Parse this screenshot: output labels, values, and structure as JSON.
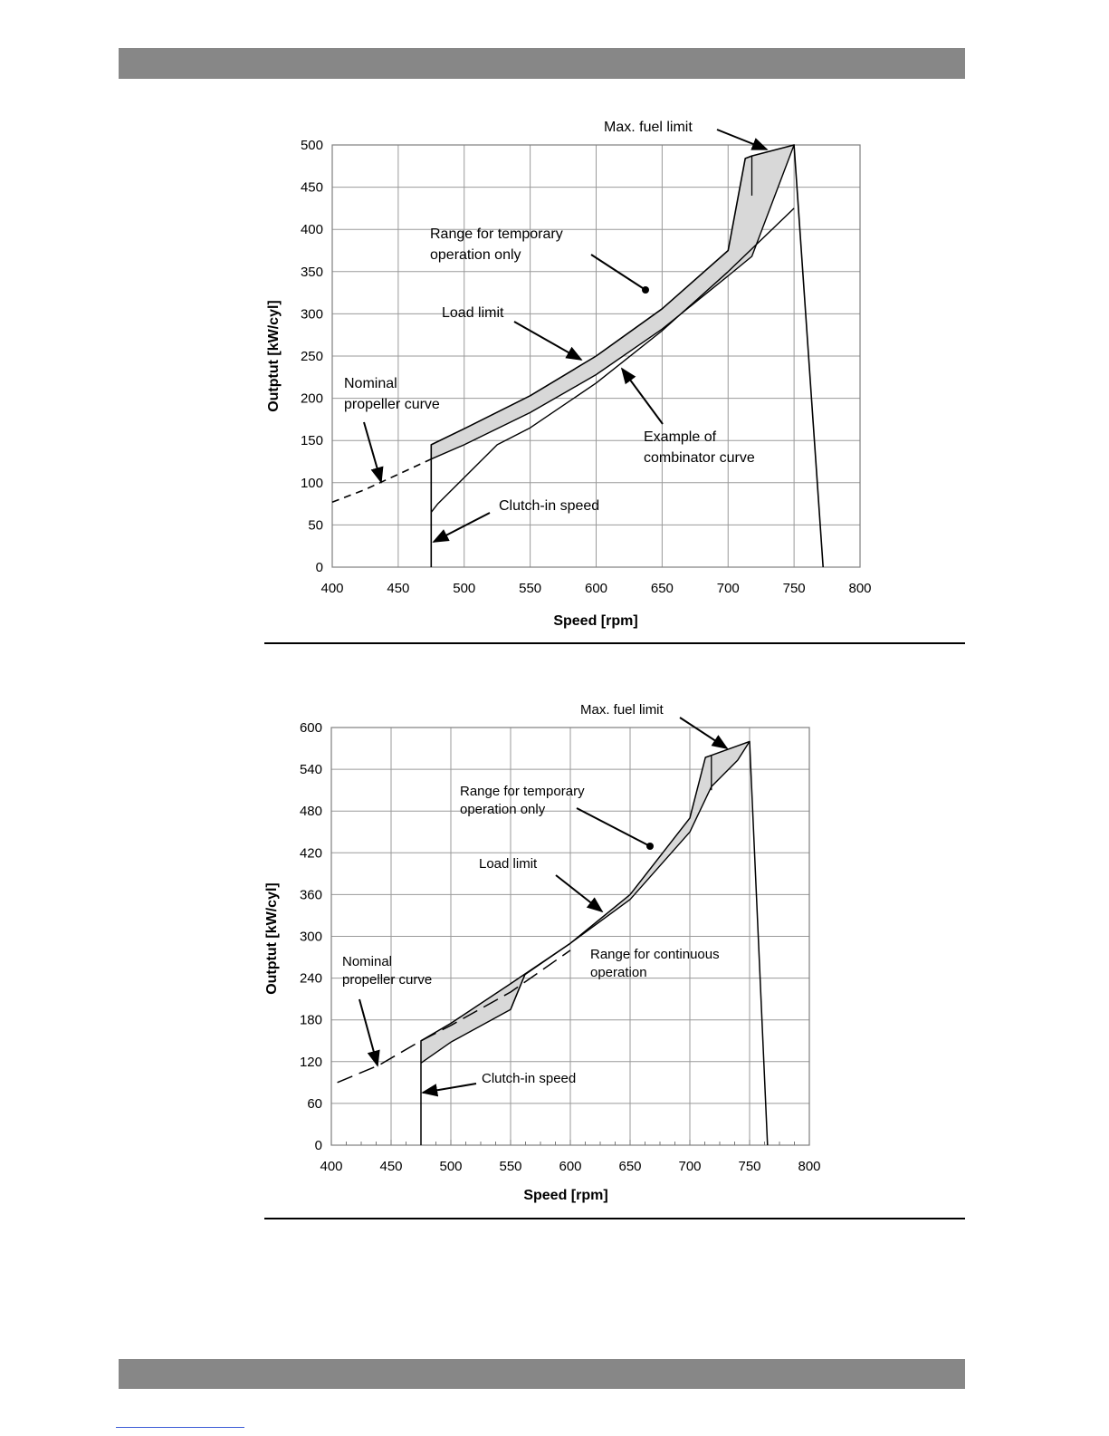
{
  "chart_data": [
    {
      "type": "line",
      "xlabel": "Speed [rpm]",
      "ylabel": "Outptut [kW/cyl]",
      "xlim": [
        400,
        800
      ],
      "ylim": [
        0,
        500
      ],
      "x_ticks": [
        400,
        450,
        500,
        550,
        600,
        650,
        700,
        750,
        800
      ],
      "y_ticks": [
        0,
        50,
        100,
        150,
        200,
        250,
        300,
        350,
        400,
        450,
        500
      ],
      "grid": true,
      "series": [
        {
          "name": "Max. fuel limit",
          "x": [
            475,
            475,
            500,
            550,
            600,
            650,
            700,
            713,
            718,
            750,
            772
          ],
          "y": [
            0,
            145,
            164,
            203,
            250,
            306,
            375,
            484,
            487,
            500,
            0
          ]
        },
        {
          "name": "Load limit",
          "x": [
            475,
            500,
            550,
            600,
            650,
            700,
            718,
            750
          ],
          "y": [
            128,
            145,
            183,
            228,
            282,
            345,
            368,
            500
          ]
        },
        {
          "name": "Nominal propeller curve",
          "x": [
            400,
            425,
            450,
            475
          ],
          "y": [
            77,
            92,
            110,
            128
          ]
        },
        {
          "name": "Example of combinator curve",
          "x": [
            475,
            480,
            525,
            550,
            600,
            650,
            700,
            750
          ],
          "y": [
            65,
            75,
            145,
            165,
            218,
            280,
            350,
            425
          ]
        }
      ],
      "annotations": [
        {
          "text_lines": [
            "Max. fuel limit"
          ]
        },
        {
          "text_lines": [
            "Range for temporary",
            "operation only"
          ]
        },
        {
          "text_lines": [
            "Load limit"
          ]
        },
        {
          "text_lines": [
            "Nominal",
            "propeller curve"
          ]
        },
        {
          "text_lines": [
            "Example of",
            "combinator curve"
          ]
        },
        {
          "text_lines": [
            "Clutch-in speed"
          ]
        }
      ]
    },
    {
      "type": "line",
      "xlabel": "Speed [rpm]",
      "ylabel": "Outptut [kW/cyl]",
      "xlim": [
        400,
        800
      ],
      "ylim": [
        0,
        600
      ],
      "x_ticks": [
        400,
        450,
        500,
        550,
        600,
        650,
        700,
        750,
        800
      ],
      "y_ticks": [
        0,
        60,
        120,
        180,
        240,
        300,
        360,
        420,
        480,
        540,
        600
      ],
      "grid": true,
      "series": [
        {
          "name": "Max. fuel limit",
          "x": [
            475,
            475,
            500,
            550,
            600,
            650,
            700,
            713,
            718,
            750,
            765
          ],
          "y": [
            0,
            150,
            175,
            232,
            290,
            360,
            470,
            557,
            560,
            580,
            0
          ]
        },
        {
          "name": "Load limit",
          "x": [
            475,
            500,
            550,
            562,
            600,
            650,
            700,
            718,
            740,
            750
          ],
          "y": [
            118,
            148,
            195,
            245,
            290,
            353,
            450,
            515,
            553,
            580
          ]
        },
        {
          "name": "Nominal propeller curve",
          "x": [
            405,
            440,
            475,
            500,
            550,
            600
          ],
          "y": [
            90,
            115,
            150,
            172,
            220,
            280
          ]
        }
      ],
      "annotations": [
        {
          "text_lines": [
            "Max. fuel limit"
          ]
        },
        {
          "text_lines": [
            "Range for temporary",
            "operation only"
          ]
        },
        {
          "text_lines": [
            "Load limit"
          ]
        },
        {
          "text_lines": [
            "Range for continuous",
            "operation"
          ]
        },
        {
          "text_lines": [
            "Nominal",
            "propeller curve"
          ]
        },
        {
          "text_lines": [
            "Clutch-in speed"
          ]
        }
      ]
    }
  ]
}
